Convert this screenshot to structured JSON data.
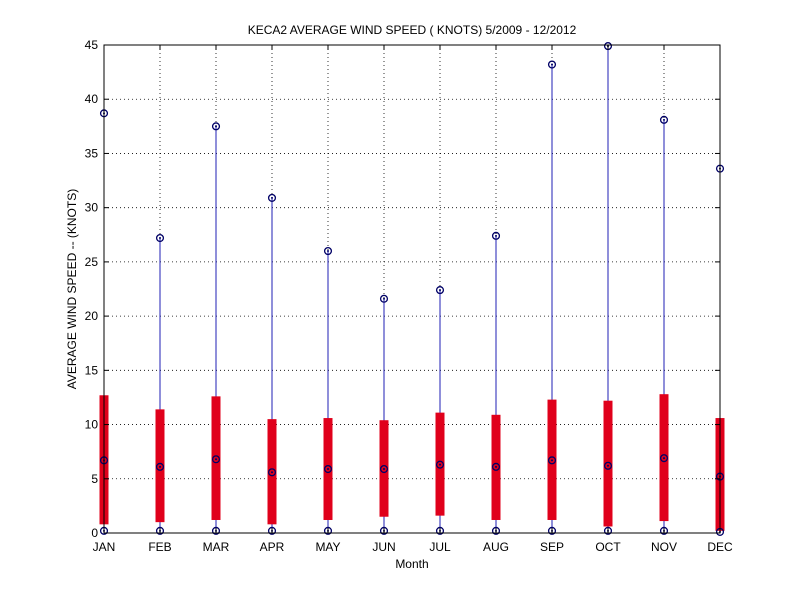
{
  "chart_data": {
    "type": "box",
    "title": "KECA2  AVERAGE WIND SPEED ( KNOTS) 5/2009 - 12/2012",
    "xlabel": "Month",
    "ylabel": "AVERAGE WIND SPEED -- (KNOTS)",
    "ylim": [
      0,
      45
    ],
    "yticks": [
      0,
      5,
      10,
      15,
      20,
      25,
      30,
      35,
      40,
      45
    ],
    "grid": true,
    "categories": [
      "JAN",
      "FEB",
      "MAR",
      "APR",
      "MAY",
      "JUN",
      "JUL",
      "AUG",
      "SEP",
      "OCT",
      "NOV",
      "DEC"
    ],
    "min": [
      0.2,
      0.2,
      0.2,
      0.2,
      0.2,
      0.2,
      0.2,
      0.2,
      0.2,
      0.2,
      0.2,
      0.1
    ],
    "q1": [
      0.8,
      1.0,
      1.2,
      0.8,
      1.2,
      1.5,
      1.6,
      1.2,
      1.2,
      0.6,
      1.1,
      0.2
    ],
    "median": [
      6.7,
      6.1,
      6.8,
      5.6,
      5.9,
      5.9,
      6.3,
      6.1,
      6.7,
      6.2,
      6.9,
      5.2
    ],
    "q3": [
      12.7,
      11.4,
      12.6,
      10.5,
      10.6,
      10.4,
      11.1,
      10.9,
      12.3,
      12.2,
      12.8,
      10.6
    ],
    "max": [
      38.7,
      27.2,
      37.5,
      30.9,
      26.0,
      21.6,
      22.4,
      27.4,
      43.2,
      44.9,
      38.1,
      33.6
    ],
    "colors": {
      "box": "#e0001b",
      "whisker": "#1f1fb4",
      "marker": "#000066",
      "grid": "#000000",
      "axis": "#000000"
    }
  }
}
